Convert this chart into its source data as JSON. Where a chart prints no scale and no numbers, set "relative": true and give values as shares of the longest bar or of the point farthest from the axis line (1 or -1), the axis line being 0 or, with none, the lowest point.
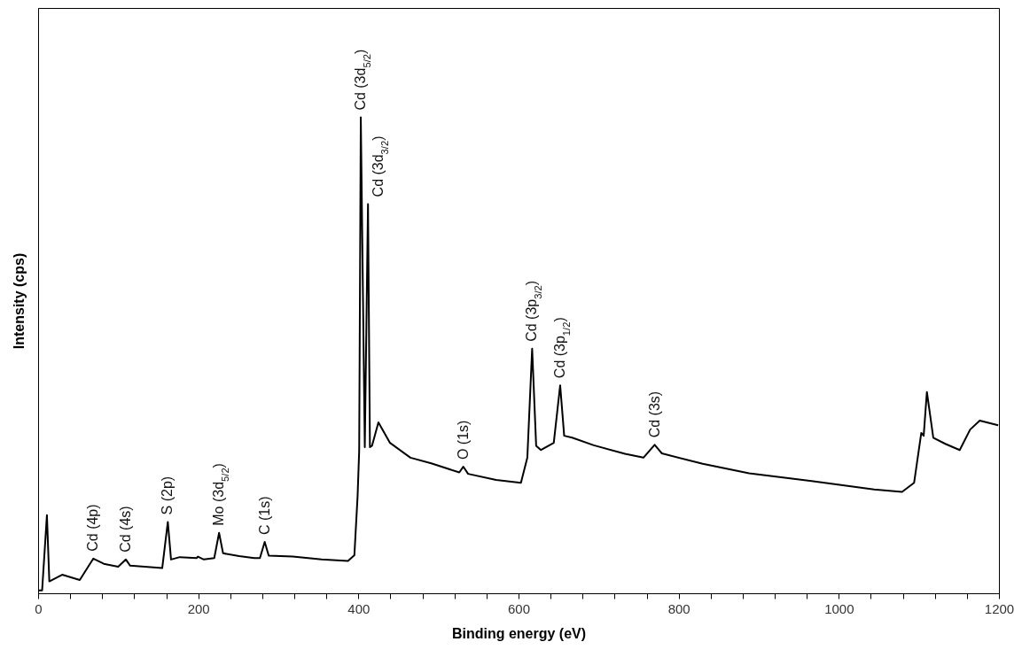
{
  "chart_data": {
    "type": "line",
    "relative": true,
    "xlabel": "Binding energy (eV)",
    "ylabel": "Intensity (cps)",
    "xlim": [
      0,
      1200
    ],
    "xticks": [
      0,
      {
        "value": 40,
        "label": null
      },
      {
        "value": 80,
        "label": null
      },
      {
        "value": 120,
        "label": null
      },
      {
        "value": 160,
        "label": null
      },
      200,
      {
        "value": 240,
        "label": null
      },
      {
        "value": 280,
        "label": null
      },
      {
        "value": 320,
        "label": null
      },
      {
        "value": 360,
        "label": null
      },
      400,
      {
        "value": 440,
        "label": null
      },
      {
        "value": 480,
        "label": null
      },
      {
        "value": 520,
        "label": null
      },
      {
        "value": 560,
        "label": null
      },
      600,
      {
        "value": 640,
        "label": null
      },
      {
        "value": 680,
        "label": null
      },
      {
        "value": 720,
        "label": null
      },
      {
        "value": 760,
        "label": null
      },
      800,
      {
        "value": 840,
        "label": null
      },
      {
        "value": 880,
        "label": null
      },
      {
        "value": 920,
        "label": null
      },
      {
        "value": 960,
        "label": null
      },
      1000,
      {
        "value": 1040,
        "label": null
      },
      {
        "value": 1080,
        "label": null
      },
      {
        "value": 1120,
        "label": null
      },
      {
        "value": 1160,
        "label": null
      },
      1200
    ],
    "x": [
      0,
      5,
      11,
      14,
      30,
      52,
      69,
      82,
      100,
      109.6,
      115,
      155,
      162,
      166,
      177,
      198,
      199.5,
      207,
      220,
      226,
      231,
      251,
      270,
      277,
      283,
      288,
      318,
      354,
      387,
      395,
      399,
      401,
      403,
      408,
      412,
      414.4,
      417,
      425,
      439.5,
      465,
      491,
      526,
      531,
      537,
      572,
      603,
      611,
      617,
      622,
      628,
      644,
      652,
      657,
      667,
      694,
      733,
      756,
      770,
      779,
      830,
      888,
      966,
      1044,
      1079,
      1094,
      1103,
      1106,
      1110,
      1118,
      1133,
      1151,
      1164,
      1176,
      1199
    ],
    "series": [
      {
        "color": "#000000",
        "values": [
          0.006,
          0.006,
          0.164,
          0.025,
          0.039,
          0.028,
          0.073,
          0.062,
          0.056,
          0.071,
          0.058,
          0.053,
          0.15,
          0.071,
          0.076,
          0.074,
          0.077,
          0.071,
          0.074,
          0.127,
          0.084,
          0.078,
          0.074,
          0.074,
          0.108,
          0.079,
          0.077,
          0.071,
          0.068,
          0.08,
          0.204,
          0.3,
          1.0,
          0.307,
          0.818,
          0.307,
          0.31,
          0.359,
          0.316,
          0.285,
          0.273,
          0.254,
          0.266,
          0.251,
          0.238,
          0.232,
          0.285,
          0.514,
          0.31,
          0.301,
          0.316,
          0.437,
          0.331,
          0.327,
          0.311,
          0.293,
          0.285,
          0.312,
          0.294,
          0.272,
          0.252,
          0.236,
          0.218,
          0.213,
          0.232,
          0.337,
          0.331,
          0.423,
          0.327,
          0.314,
          0.301,
          0.344,
          0.363,
          0.353
        ]
      }
    ],
    "annotations": [
      {
        "text": "Cd (4p)",
        "x": 69,
        "y": 0.073
      },
      {
        "text": "Cd (4s)",
        "x": 109.6,
        "y": 0.071
      },
      {
        "text": "S (2p)",
        "x": 162,
        "y": 0.15
      },
      {
        "text": "Mo (3d$_{5/2}$)",
        "x": 226,
        "y": 0.127
      },
      {
        "text": "C (1s)",
        "x": 283,
        "y": 0.108
      },
      {
        "text": "Cd (3d$_{5/2}$)",
        "x": 403,
        "y": 1.0
      },
      {
        "text": "Cd (3d$_{3/2}$)",
        "x": 412,
        "y": 0.818
      },
      {
        "text": "O (1s)",
        "x": 531,
        "y": 0.266
      },
      {
        "text": "Cd (3p$_{3/2}$)",
        "x": 617,
        "y": 0.514
      },
      {
        "text": "Cd (3p$_{1/2}$)",
        "x": 652,
        "y": 0.437
      },
      {
        "text": "Cd (3s)",
        "x": 770,
        "y": 0.312
      }
    ]
  }
}
